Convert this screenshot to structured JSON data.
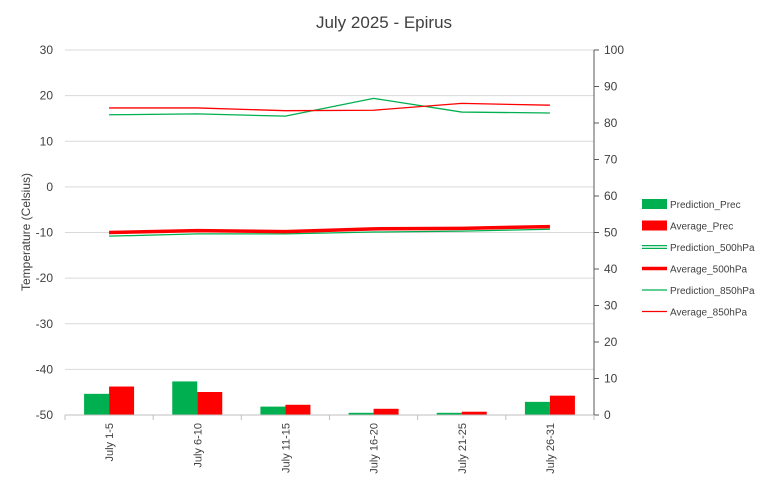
{
  "chart_data": {
    "type": "bar",
    "title": "July 2025 - Epirus",
    "ylabel": "Temperature (Celsius)",
    "y2label": "",
    "categories": [
      "July 1-5",
      "July 6-10",
      "July 11-15",
      "July 16-20",
      "July 21-25",
      "July 26-31"
    ],
    "ylim": [
      -50,
      30
    ],
    "yticks": [
      -50,
      -40,
      -30,
      -20,
      -10,
      0,
      10,
      20,
      30
    ],
    "y2lim": [
      0,
      100
    ],
    "y2ticks": [
      0,
      10,
      20,
      30,
      40,
      50,
      60,
      70,
      80,
      90,
      100
    ],
    "grid": "horizontal",
    "legend_position": "right",
    "series": [
      {
        "name": "Prediction_Prec",
        "kind": "bar",
        "axis": "right",
        "color": "#00b050",
        "values": [
          5.8,
          9.2,
          2.3,
          0.6,
          0.6,
          3.6
        ]
      },
      {
        "name": "Average_Prec",
        "kind": "bar",
        "axis": "right",
        "color": "#ff0000",
        "values": [
          7.8,
          6.3,
          2.8,
          1.7,
          0.9,
          5.3
        ]
      },
      {
        "name": "Prediction_500hPa",
        "kind": "line",
        "style": "double",
        "axis": "left",
        "color": "#00b050",
        "values": [
          -10.5,
          -10.0,
          -10.0,
          -9.6,
          -9.4,
          -9.0
        ]
      },
      {
        "name": "Average_500hPa",
        "kind": "line",
        "style": "thick",
        "axis": "left",
        "color": "#ff0000",
        "values": [
          -10.0,
          -9.6,
          -9.8,
          -9.2,
          -9.1,
          -8.7
        ]
      },
      {
        "name": "Prediction_850hPa",
        "kind": "line",
        "style": "thin",
        "axis": "left",
        "color": "#00b050",
        "values": [
          15.8,
          16.0,
          15.5,
          19.4,
          16.4,
          16.2
        ]
      },
      {
        "name": "Average_850hPa",
        "kind": "line",
        "style": "thin",
        "axis": "left",
        "color": "#ff0000",
        "values": [
          17.3,
          17.3,
          16.7,
          16.8,
          18.3,
          17.9
        ]
      }
    ]
  }
}
